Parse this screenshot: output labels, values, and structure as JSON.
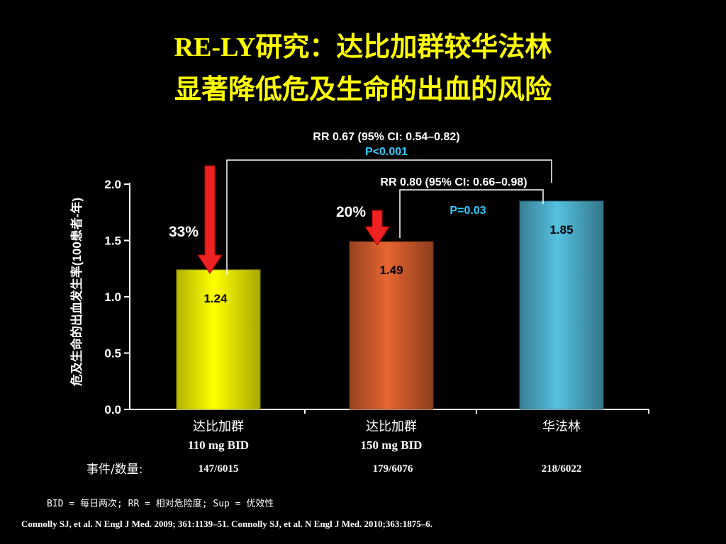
{
  "slide": {
    "title_line1": "RE-LY研究：达比加群较华法林",
    "title_line2": "显著降低危及生命的出血的风险",
    "footnote": "BID = 每日两次; RR = 相对危险度; Sup = 优效性",
    "citation": "Connolly SJ, et al. N Engl J Med. 2009; 361:1139–51. Connolly SJ, et al. N Engl J Med. 2010;363:1875–6."
  },
  "chart_data": {
    "type": "bar",
    "ylabel": "危及生命的出血发生率(100患者-年)",
    "ylim": [
      0,
      2.0
    ],
    "yticks": [
      "0.0",
      "0.5",
      "1.0",
      "1.5",
      "2.0"
    ],
    "grid": false,
    "categories": [
      {
        "line1": "达比加群",
        "line2": "110 mg BID",
        "events": "147/6015"
      },
      {
        "line1": "达比加群",
        "line2": "150 mg BID",
        "events": "179/6076"
      },
      {
        "line1": "华法林",
        "line2": "",
        "events": "218/6022"
      }
    ],
    "values": [
      1.24,
      1.49,
      1.85
    ],
    "value_labels": [
      "1.24",
      "1.49",
      "1.85"
    ],
    "bar_colors": [
      "#f0f000",
      "#c8582a",
      "#4aa8c4"
    ],
    "events_label": "事件/数量:",
    "reductions": [
      {
        "label": "33%",
        "bar_index": 0
      },
      {
        "label": "20%",
        "bar_index": 1
      }
    ],
    "comparisons": [
      {
        "rr": "RR 0.67 (95% CI: 0.54–0.82)",
        "p": "P<0.001",
        "from_bar": 0,
        "to_bar": 2
      },
      {
        "rr": "RR 0.80 (95% CI: 0.66–0.98)",
        "p": "P=0.03",
        "from_bar": 1,
        "to_bar": 2
      }
    ],
    "colors": {
      "p_value": "#33ccff",
      "arrow": "#ee2222",
      "axis": "#ffffff"
    }
  }
}
